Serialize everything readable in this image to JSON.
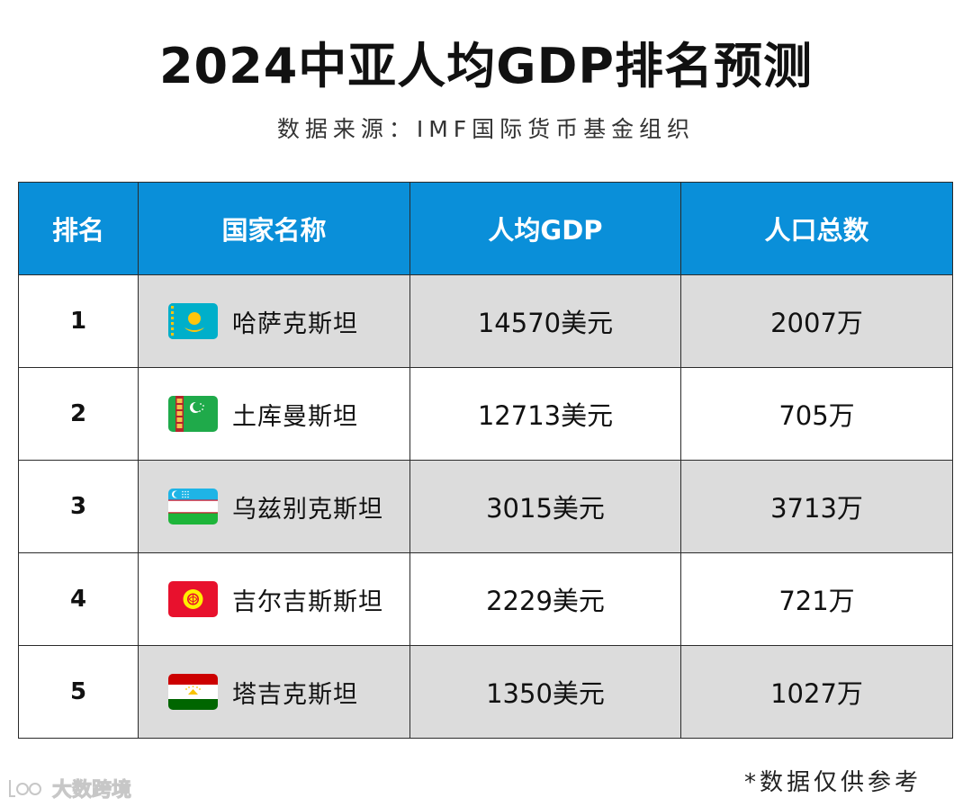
{
  "title": "2024中亚人均GDP排名预测",
  "subtitle": "数据来源：IMF国际货币基金组织",
  "table": {
    "headers": [
      "排名",
      "国家名称",
      "人均GDP",
      "人口总数"
    ],
    "rows": [
      {
        "rank": "1",
        "country": "哈萨克斯坦",
        "gdp": "14570美元",
        "population": "2007万",
        "flag": "kazakhstan-flag-icon"
      },
      {
        "rank": "2",
        "country": "土库曼斯坦",
        "gdp": "12713美元",
        "population": "705万",
        "flag": "turkmenistan-flag-icon"
      },
      {
        "rank": "3",
        "country": "乌兹别克斯坦",
        "gdp": "3015美元",
        "population": "3713万",
        "flag": "uzbekistan-flag-icon"
      },
      {
        "rank": "4",
        "country": "吉尔吉斯斯坦",
        "gdp": "2229美元",
        "population": "721万",
        "flag": "kyrgyzstan-flag-icon"
      },
      {
        "rank": "5",
        "country": "塔吉克斯坦",
        "gdp": "1350美元",
        "population": "1027万",
        "flag": "tajikistan-flag-icon"
      }
    ]
  },
  "footnote": "*数据仅供参考",
  "watermark": {
    "text": "大数跨境"
  },
  "colors": {
    "header_bg": "#0a8fd9",
    "header_text": "#ffffff",
    "shaded_row": "#dcdcdc",
    "border": "#2b2b2b"
  }
}
